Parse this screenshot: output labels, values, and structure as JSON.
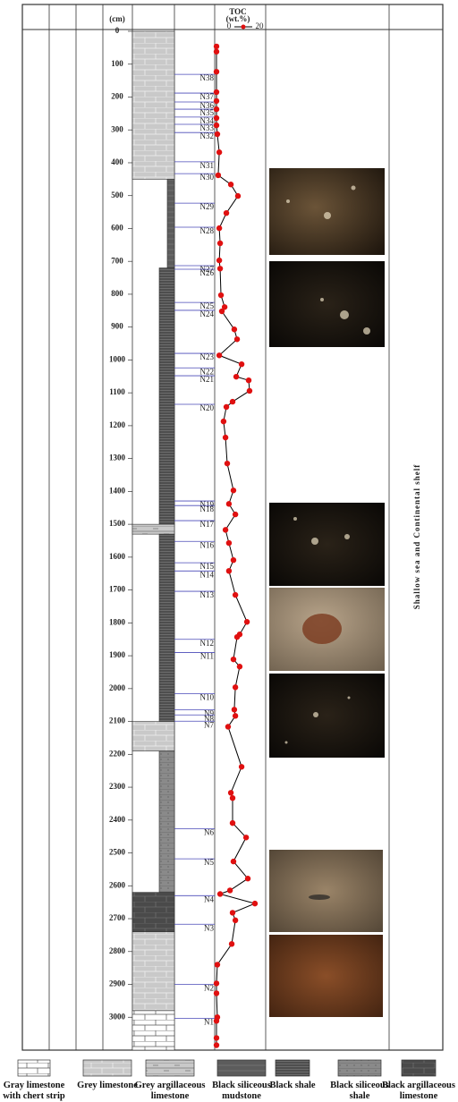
{
  "chart_data": {
    "type": "strat-column",
    "depth_axis": {
      "label": "(cm)",
      "ylim": [
        0,
        3100
      ],
      "yticks": [
        0,
        100,
        200,
        300,
        400,
        500,
        600,
        700,
        800,
        900,
        1000,
        1100,
        1200,
        1300,
        1400,
        1500,
        1600,
        1700,
        1800,
        1900,
        2000,
        2100,
        2200,
        2300,
        2400,
        2500,
        2600,
        2700,
        2800,
        2900,
        3000
      ]
    },
    "toc": {
      "title": "TOC",
      "unit": "(wt.%)",
      "xlim": [
        0,
        20
      ],
      "xticks": [
        0,
        20
      ],
      "color": "#e01010",
      "depth": [
        46,
        62,
        123,
        185,
        212,
        237,
        264,
        286,
        313,
        368,
        438,
        466,
        501,
        553,
        599,
        645,
        697,
        722,
        803,
        839,
        852,
        907,
        937,
        986,
        1013,
        1051,
        1062,
        1094,
        1127,
        1143,
        1187,
        1236,
        1315,
        1397,
        1438,
        1470,
        1517,
        1557,
        1609,
        1642,
        1715,
        1797,
        1835,
        1843,
        1911,
        1933,
        1996,
        2064,
        2083,
        2116,
        2238,
        2317,
        2333,
        2409,
        2453,
        2526,
        2578,
        2614,
        2625,
        2654,
        2682,
        2705,
        2777,
        2840,
        2897,
        2927,
        3000,
        3011,
        3063,
        3085
      ],
      "values": [
        0,
        0,
        0,
        0,
        0,
        0,
        0,
        0,
        0.4,
        1.3,
        0.8,
        6.7,
        10,
        4.6,
        1.3,
        1.7,
        1.3,
        1.7,
        2.1,
        3.8,
        2.5,
        8.3,
        9.6,
        1.3,
        11.7,
        9.2,
        15,
        15.4,
        7.5,
        4.6,
        3.3,
        4.2,
        5,
        7.9,
        5.8,
        8.8,
        4.2,
        5.8,
        7.9,
        5.8,
        8.8,
        14.2,
        10.8,
        9.6,
        7.9,
        10.8,
        8.8,
        8.3,
        8.8,
        5.4,
        11.7,
        6.7,
        7.5,
        7.5,
        13.8,
        7.9,
        14.6,
        6.3,
        1.7,
        17.9,
        7.5,
        8.8,
        7.1,
        0.4,
        0,
        0,
        0.4,
        0,
        0,
        0
      ]
    },
    "samples": {
      "names": [
        "N38",
        "N37",
        "N36",
        "N35",
        "N34",
        "N33",
        "N32",
        "N31",
        "N30",
        "N29",
        "N28",
        "N27",
        "N26",
        "N25",
        "N24",
        "N23",
        "N22",
        "N21",
        "N20",
        "N19",
        "N18",
        "N17",
        "N16",
        "N15",
        "N14",
        "N13",
        "N12",
        "N11",
        "N10",
        "N9",
        "N8",
        "N7",
        "N6",
        "N5",
        "N4",
        "N3",
        "N2",
        "N1"
      ],
      "depth": [
        131,
        188,
        215,
        237,
        261,
        283,
        308,
        397,
        433,
        523,
        596,
        713,
        724,
        825,
        849,
        980,
        1024,
        1048,
        1135,
        1429,
        1443,
        1489,
        1552,
        1617,
        1642,
        1704,
        1850,
        1890,
        2015,
        2064,
        2080,
        2099,
        2426,
        2518,
        2630,
        2717,
        2900,
        3003
      ]
    },
    "lithology": {
      "top": [
        0,
        450,
        720,
        1500,
        1530,
        2100,
        2190,
        2620,
        2740,
        2980
      ],
      "bottom": [
        450,
        720,
        1500,
        1530,
        2100,
        2190,
        2620,
        2740,
        2980,
        3100
      ],
      "type": [
        1,
        3,
        4,
        2,
        4,
        1,
        5,
        6,
        1,
        0
      ]
    },
    "environment": "Shallow sea and Continental shelf",
    "legend": [
      "Gray limestone with chert strip",
      "Grey limestone",
      "Grey argillaceous limestone",
      "Black siliceous mudstone",
      "Black shale",
      "Black siliceous shale",
      "Black argillaceous limestone"
    ]
  }
}
